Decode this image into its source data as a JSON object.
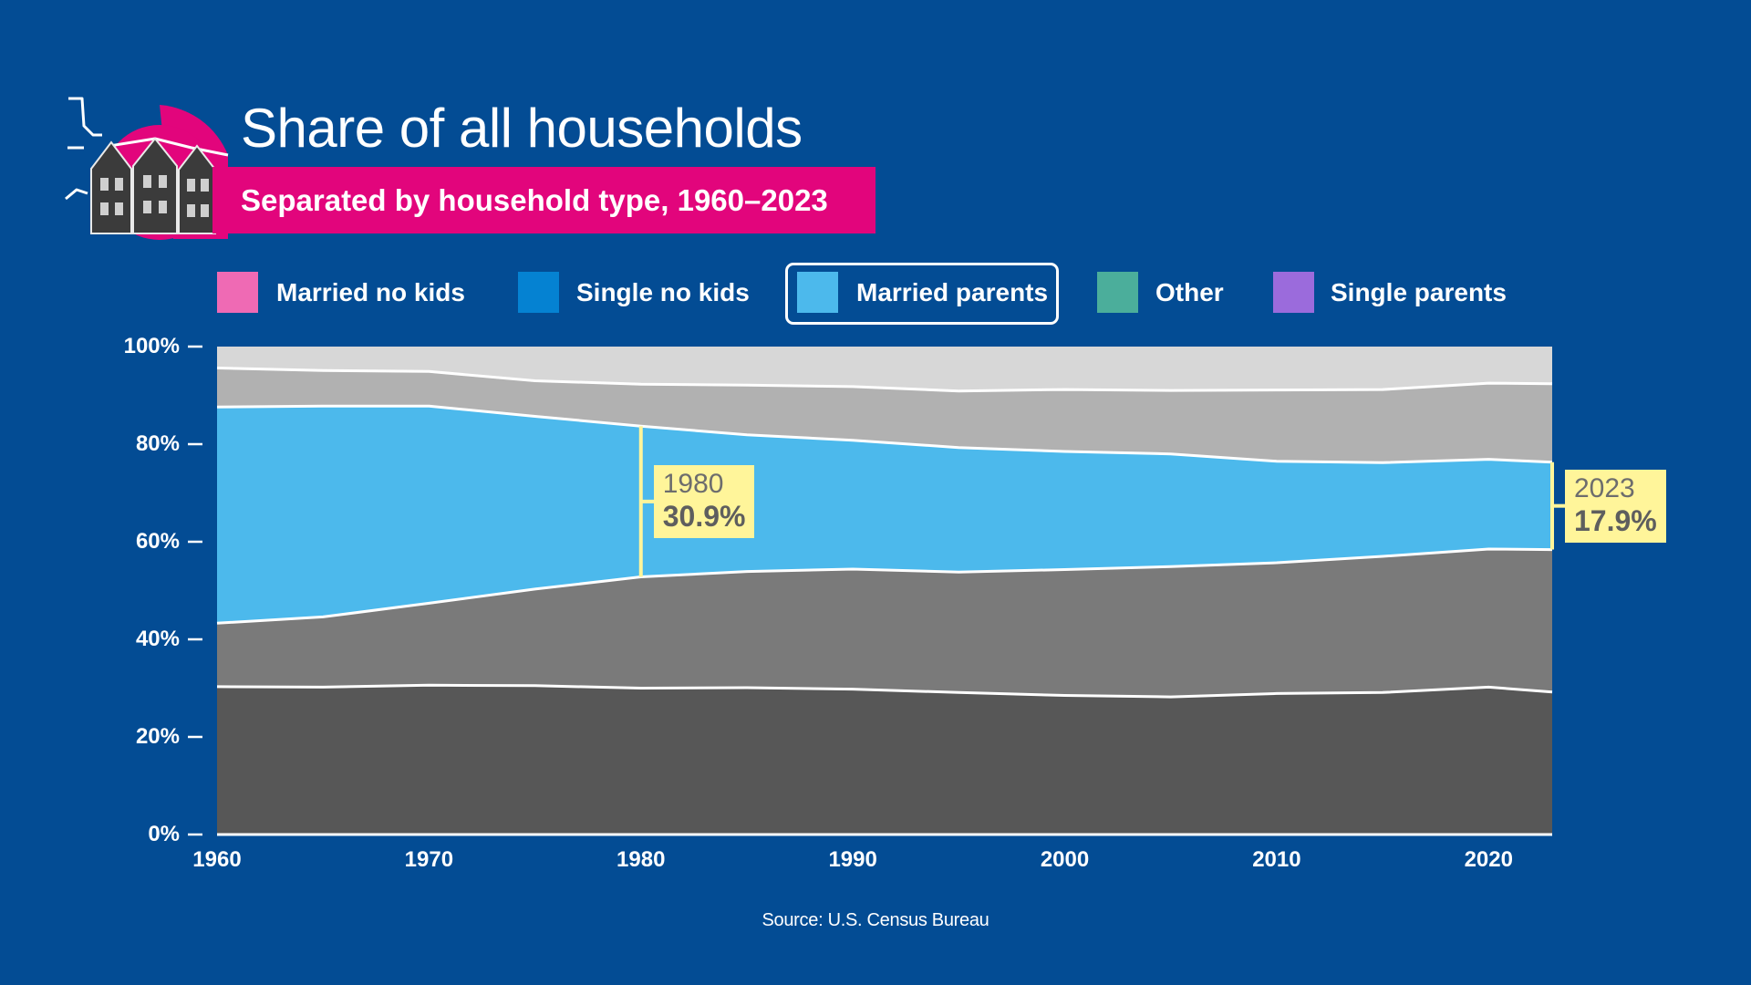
{
  "header": {
    "title": "Share of all households",
    "subtitle": "Separated by household type, 1960–2023"
  },
  "legend": [
    {
      "label": "Married no kids",
      "color": "#ef6ab4",
      "highlight": false
    },
    {
      "label": "Single no kids",
      "color": "#0582d2",
      "highlight": false
    },
    {
      "label": "Married parents",
      "color": "#4cb9ec",
      "highlight": true
    },
    {
      "label": "Other",
      "color": "#4bae9b",
      "highlight": false
    },
    {
      "label": "Single parents",
      "color": "#9b6bdc",
      "highlight": false
    }
  ],
  "callouts": [
    {
      "year": "1980",
      "value": "30.9%"
    },
    {
      "year": "2023",
      "value": "17.9%"
    }
  ],
  "source": "Source: U.S. Census Bureau",
  "colors": {
    "background": "#034c94",
    "married_no_kids_fill": "#575757",
    "single_no_kids_fill": "#7a7a7a",
    "married_parents_fill": "#4cb9ec",
    "other_fill": "#b1b1b1",
    "single_parents_fill": "#d7d7d7",
    "callout": "#fff59a",
    "subtitle_bg": "#e2057c"
  },
  "chart_data": {
    "type": "area",
    "stacked": true,
    "x": [
      1960,
      1965,
      1970,
      1975,
      1980,
      1985,
      1990,
      1995,
      2000,
      2005,
      2010,
      2015,
      2020,
      2023
    ],
    "series": [
      {
        "name": "Married no kids",
        "values": [
          30.3,
          30.2,
          30.6,
          30.5,
          30.0,
          30.1,
          29.8,
          29.1,
          28.5,
          28.2,
          28.9,
          29.1,
          30.2,
          29.2
        ]
      },
      {
        "name": "Single no kids",
        "values": [
          13.0,
          14.4,
          16.8,
          19.8,
          22.8,
          23.8,
          24.6,
          24.7,
          25.8,
          26.7,
          26.8,
          27.9,
          28.3,
          29.2
        ]
      },
      {
        "name": "Married parents",
        "values": [
          44.3,
          43.2,
          40.4,
          35.4,
          30.9,
          28.0,
          26.4,
          25.5,
          24.2,
          23.1,
          20.8,
          19.2,
          18.4,
          17.9
        ]
      },
      {
        "name": "Other",
        "values": [
          8.0,
          7.3,
          7.1,
          7.3,
          8.6,
          10.2,
          11.0,
          11.6,
          12.7,
          13.0,
          14.6,
          15.0,
          15.6,
          16.1
        ]
      },
      {
        "name": "Single parents",
        "values": [
          4.4,
          4.9,
          5.1,
          7.0,
          7.7,
          7.9,
          8.2,
          9.1,
          8.8,
          9.0,
          8.9,
          8.8,
          7.5,
          7.6
        ]
      }
    ],
    "xlim": [
      1960,
      2023
    ],
    "ylim": [
      0,
      100
    ],
    "xticks": [
      "1960",
      "1970",
      "1980",
      "1990",
      "2000",
      "2010",
      "2020"
    ],
    "xtick_values": [
      1960,
      1970,
      1980,
      1990,
      2000,
      2010,
      2020
    ],
    "yticks": [
      "0%",
      "20%",
      "40%",
      "60%",
      "80%",
      "100%"
    ],
    "ytick_values": [
      0,
      20,
      40,
      60,
      80,
      100
    ],
    "highlight_series": "Married parents",
    "annotations": [
      {
        "x": 1980,
        "label": "1980",
        "value": "30.9%"
      },
      {
        "x": 2023,
        "label": "2023",
        "value": "17.9%"
      }
    ]
  }
}
